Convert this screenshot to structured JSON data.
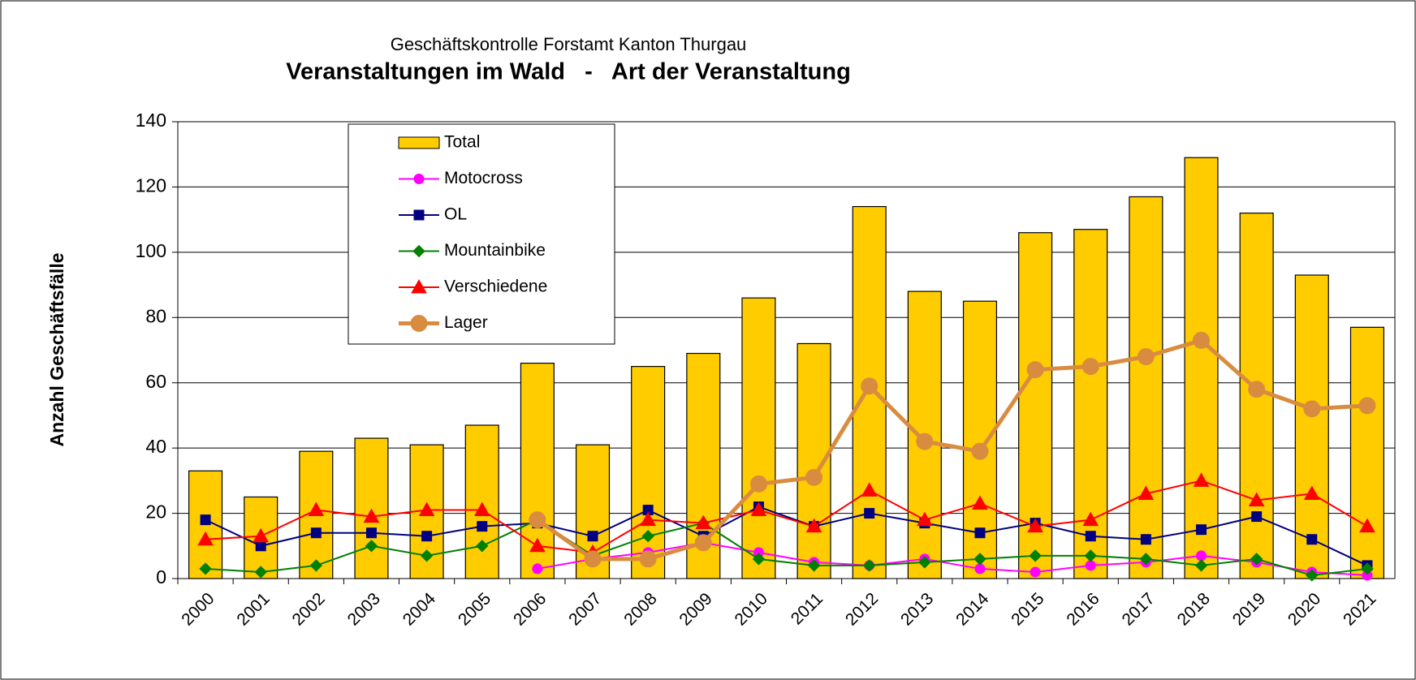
{
  "chart_data": {
    "type": "bar",
    "subtitle": "Geschäftskontrolle Forstamt Kanton Thurgau",
    "title": "Veranstaltungen im Wald   -   Art der Veranstaltung",
    "y_label": "Anzahl Geschäftsfälle",
    "categories": [
      "2000",
      "2001",
      "2002",
      "2003",
      "2004",
      "2005",
      "2006",
      "2007",
      "2008",
      "2009",
      "2010",
      "2011",
      "2012",
      "2013",
      "2014",
      "2015",
      "2016",
      "2017",
      "2018",
      "2019",
      "2020",
      "2021"
    ],
    "ylim": [
      0,
      140
    ],
    "yticks": [
      0,
      20,
      40,
      60,
      80,
      100,
      120,
      140
    ],
    "grid": true,
    "legend": "upper left",
    "series": [
      {
        "name": "Total",
        "type": "bar",
        "color": "#ffcc00",
        "values": [
          33,
          25,
          39,
          43,
          41,
          47,
          66,
          41,
          65,
          69,
          86,
          72,
          114,
          88,
          85,
          106,
          107,
          117,
          129,
          112,
          93,
          77
        ]
      },
      {
        "name": "Motocross",
        "type": "line",
        "marker": "circle",
        "color": "#ff00ff",
        "values": [
          null,
          null,
          null,
          null,
          null,
          null,
          3,
          6,
          8,
          11,
          8,
          5,
          4,
          6,
          3,
          2,
          4,
          5,
          7,
          5,
          2,
          1
        ]
      },
      {
        "name": "OL",
        "type": "line",
        "marker": "square",
        "color": "#000080",
        "values": [
          18,
          10,
          14,
          14,
          13,
          16,
          17,
          13,
          21,
          13,
          22,
          16,
          20,
          17,
          14,
          17,
          13,
          12,
          15,
          19,
          12,
          4
        ]
      },
      {
        "name": "Mountainbike",
        "type": "line",
        "marker": "diamond",
        "color": "#008000",
        "values": [
          3,
          2,
          4,
          10,
          7,
          10,
          18,
          7,
          13,
          17,
          6,
          4,
          4,
          5,
          6,
          7,
          7,
          6,
          4,
          6,
          1,
          3
        ]
      },
      {
        "name": "Verschiedene",
        "type": "line",
        "marker": "triangle",
        "color": "#ff0000",
        "values": [
          12,
          13,
          21,
          19,
          21,
          21,
          10,
          8,
          18,
          17,
          21,
          16,
          27,
          18,
          23,
          16,
          18,
          26,
          30,
          24,
          26,
          16
        ]
      },
      {
        "name": "Lager",
        "type": "line",
        "marker": "bigcircle",
        "color": "#d98c3f",
        "values": [
          null,
          null,
          null,
          null,
          null,
          null,
          18,
          6,
          6,
          11,
          29,
          31,
          59,
          42,
          39,
          64,
          65,
          68,
          73,
          58,
          52,
          53
        ]
      }
    ]
  }
}
